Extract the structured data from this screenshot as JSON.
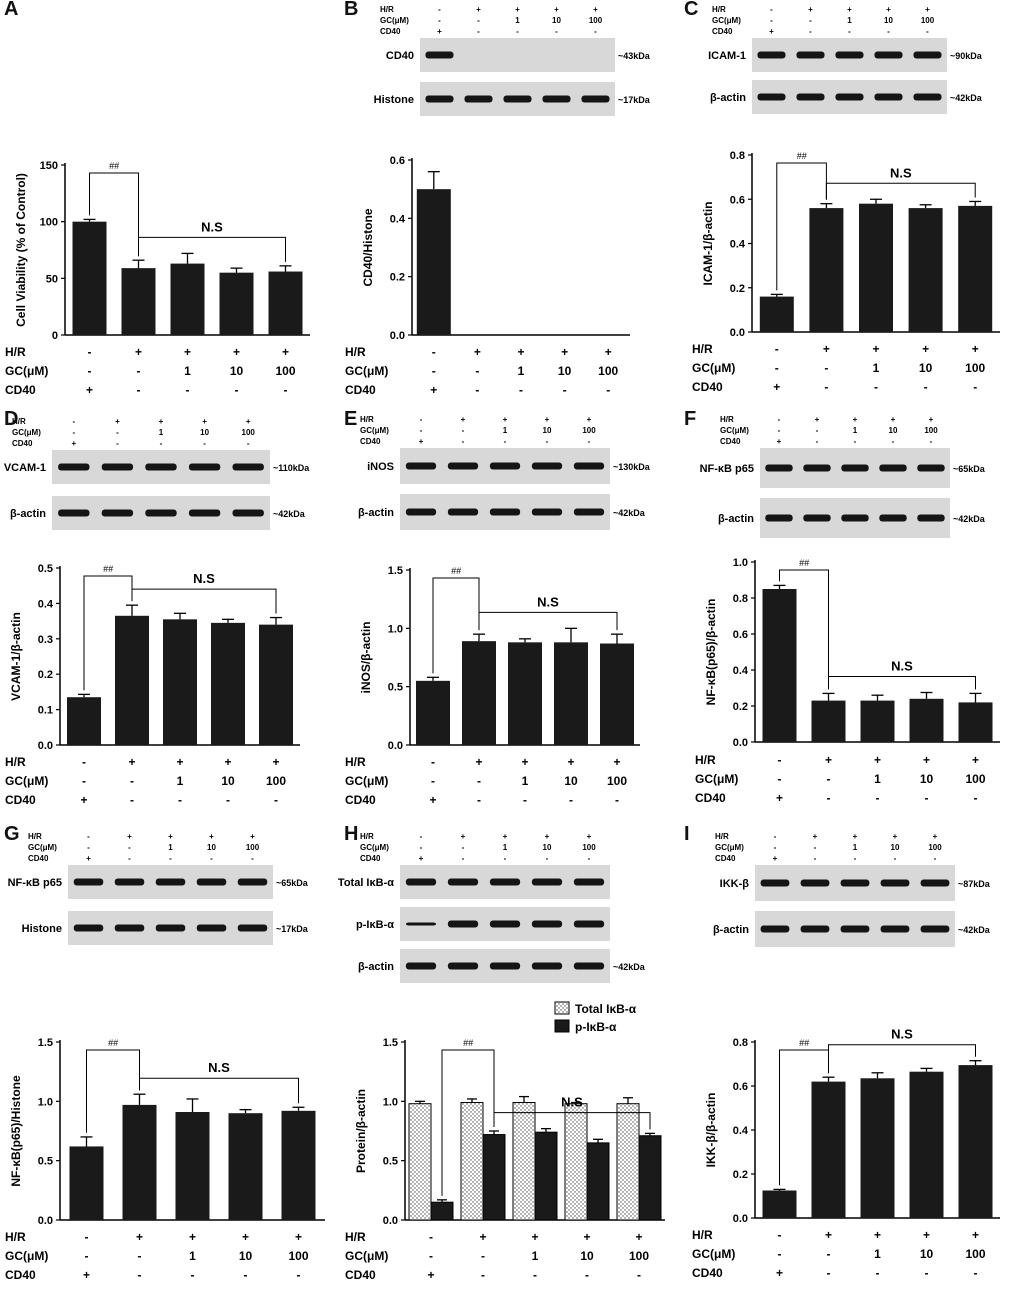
{
  "colors": {
    "bar": "#1a1a1a",
    "axis": "#000000",
    "blot_bg": "#d8d8d8",
    "band": "#151515"
  },
  "treatments": {
    "labels": [
      "H/R",
      "GC(μM)",
      "CD40"
    ],
    "small_labels": [
      "H/R",
      "GC(μM)",
      "CD40"
    ],
    "hr": [
      "-",
      "+",
      "+",
      "+",
      "+"
    ],
    "gc": [
      "-",
      "-",
      "1",
      "10",
      "100"
    ],
    "cd40": [
      "+",
      "-",
      "-",
      "-",
      "-"
    ]
  },
  "panels": [
    {
      "id": "A",
      "has_blot": false,
      "blots": []
    },
    {
      "id": "B",
      "has_blot": true,
      "blots": [
        {
          "label": "CD40",
          "size": "~43kDa"
        },
        {
          "label": "Histone",
          "size": "~17kDa"
        }
      ]
    },
    {
      "id": "C",
      "has_blot": true,
      "blots": [
        {
          "label": "ICAM-1",
          "size": "~90kDa"
        },
        {
          "label": "β-actin",
          "size": "~42kDa"
        }
      ]
    },
    {
      "id": "D",
      "has_blot": true,
      "blots": [
        {
          "label": "VCAM-1",
          "size": "~110kDa"
        },
        {
          "label": "β-actin",
          "size": "~42kDa"
        }
      ]
    },
    {
      "id": "E",
      "has_blot": true,
      "blots": [
        {
          "label": "iNOS",
          "size": "~130kDa"
        },
        {
          "label": "β-actin",
          "size": "~42kDa"
        }
      ]
    },
    {
      "id": "F",
      "has_blot": true,
      "blots": [
        {
          "label": "NF-κB p65",
          "size": "~65kDa"
        },
        {
          "label": "β-actin",
          "size": "~42kDa"
        }
      ]
    },
    {
      "id": "G",
      "has_blot": true,
      "blots": [
        {
          "label": "NF-κB p65",
          "size": "~65kDa"
        },
        {
          "label": "Histone",
          "size": "~17kDa"
        }
      ]
    },
    {
      "id": "H",
      "has_blot": true,
      "blots": [
        {
          "label": "Total IκB-α",
          "size": ""
        },
        {
          "label": "p-IκB-α",
          "size": ""
        },
        {
          "label": "β-actin",
          "size": "~42kDa"
        }
      ]
    },
    {
      "id": "I",
      "has_blot": true,
      "blots": [
        {
          "label": "IKK-β",
          "size": "~87kDa"
        },
        {
          "label": "β-actin",
          "size": "~42kDa"
        }
      ]
    }
  ],
  "chart_data": [
    {
      "panel": "A",
      "type": "bar",
      "ylabel": "Cell Viability (% of Control)",
      "ylim": [
        0,
        150
      ],
      "yticks": [
        0,
        50,
        100,
        150
      ],
      "values": [
        100,
        59,
        63,
        55,
        56
      ],
      "errors": [
        2,
        7,
        9,
        4,
        5
      ],
      "annotations": {
        "sig": "##",
        "ns": "N.S"
      }
    },
    {
      "panel": "B",
      "type": "bar",
      "ylabel": "CD40/Histone",
      "ylim": [
        0,
        0.6
      ],
      "yticks": [
        0.0,
        0.2,
        0.4,
        0.6
      ],
      "values": [
        0.5,
        0,
        0,
        0,
        0
      ],
      "errors": [
        0.06,
        0,
        0,
        0,
        0
      ],
      "annotations": {}
    },
    {
      "panel": "C",
      "type": "bar",
      "ylabel": "ICAM-1/β-actin",
      "ylim": [
        0,
        0.8
      ],
      "yticks": [
        0.0,
        0.2,
        0.4,
        0.6,
        0.8
      ],
      "values": [
        0.16,
        0.56,
        0.58,
        0.56,
        0.57
      ],
      "errors": [
        0.01,
        0.02,
        0.02,
        0.015,
        0.02
      ],
      "annotations": {
        "sig": "##",
        "ns": "N.S"
      }
    },
    {
      "panel": "D",
      "type": "bar",
      "ylabel": "VCAM-1/β-actin",
      "ylim": [
        0,
        0.5
      ],
      "yticks": [
        0.0,
        0.1,
        0.2,
        0.3,
        0.4,
        0.5
      ],
      "values": [
        0.135,
        0.365,
        0.355,
        0.345,
        0.34
      ],
      "errors": [
        0.008,
        0.03,
        0.017,
        0.01,
        0.02
      ],
      "annotations": {
        "sig": "##",
        "ns": "N.S"
      }
    },
    {
      "panel": "E",
      "type": "bar",
      "ylabel": "iNOS/β-actin",
      "ylim": [
        0,
        1.5
      ],
      "yticks": [
        0.0,
        0.5,
        1.0,
        1.5
      ],
      "values": [
        0.55,
        0.89,
        0.88,
        0.88,
        0.87
      ],
      "errors": [
        0.03,
        0.06,
        0.03,
        0.12,
        0.08
      ],
      "annotations": {
        "sig": "##",
        "ns": "N.S"
      }
    },
    {
      "panel": "F",
      "type": "bar",
      "ylabel": "NF-κB(p65)/β-actin",
      "ylim": [
        0,
        1.0
      ],
      "yticks": [
        0.0,
        0.2,
        0.4,
        0.6,
        0.8,
        1.0
      ],
      "values": [
        0.85,
        0.23,
        0.23,
        0.24,
        0.22
      ],
      "errors": [
        0.02,
        0.04,
        0.03,
        0.035,
        0.05
      ],
      "annotations": {
        "sig": "##",
        "ns": "N.S"
      }
    },
    {
      "panel": "G",
      "type": "bar",
      "ylabel": "NF-κB(p65)/Histone",
      "ylim": [
        0,
        1.5
      ],
      "yticks": [
        0.0,
        0.5,
        1.0,
        1.5
      ],
      "values": [
        0.62,
        0.97,
        0.91,
        0.9,
        0.92
      ],
      "errors": [
        0.08,
        0.09,
        0.11,
        0.03,
        0.03
      ],
      "annotations": {
        "sig": "##",
        "ns": "N.S"
      }
    },
    {
      "panel": "H",
      "type": "bar",
      "ylabel": "Protein/β-actin",
      "ylim": [
        0,
        1.5
      ],
      "yticks": [
        0.0,
        0.5,
        1.0,
        1.5
      ],
      "series": [
        {
          "name": "Total IκB-α",
          "values": [
            0.98,
            0.99,
            0.99,
            0.98,
            0.98
          ],
          "errors": [
            0.02,
            0.03,
            0.05,
            0.01,
            0.05
          ],
          "pattern": "dotted"
        },
        {
          "name": "p-IκB-α",
          "values": [
            0.15,
            0.72,
            0.74,
            0.65,
            0.71
          ],
          "errors": [
            0.02,
            0.03,
            0.03,
            0.03,
            0.02
          ],
          "pattern": "solid"
        }
      ],
      "legend_position": "top-right",
      "annotations": {
        "sig": "##",
        "ns": "N.S"
      }
    },
    {
      "panel": "I",
      "type": "bar",
      "ylabel": "IKK-β/β-actin",
      "ylim": [
        0,
        0.8
      ],
      "yticks": [
        0.0,
        0.2,
        0.4,
        0.6,
        0.8
      ],
      "values": [
        0.125,
        0.62,
        0.635,
        0.665,
        0.695
      ],
      "errors": [
        0.005,
        0.02,
        0.025,
        0.015,
        0.02
      ],
      "annotations": {
        "sig": "##",
        "ns": "N.S"
      }
    }
  ]
}
